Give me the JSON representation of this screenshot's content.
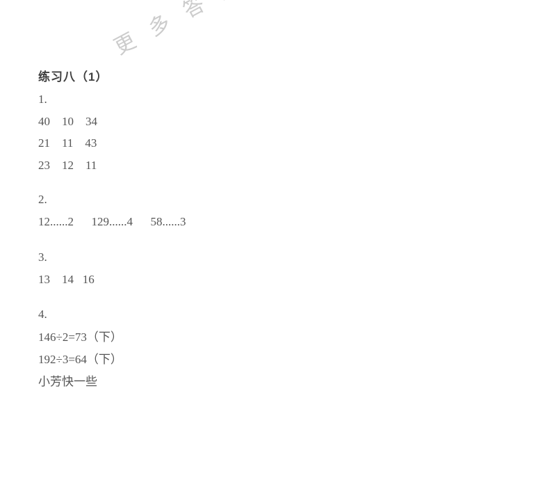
{
  "watermark": "更多答案请下载作业精灵",
  "title": "练习八（1）",
  "q1": {
    "label": "1.",
    "r1c1": "40",
    "r1c2": "10",
    "r1c3": "34",
    "r2c1": "21",
    "r2c2": "11",
    "r2c3": "43",
    "r3c1": "23",
    "r3c2": "12",
    "r3c3": "11"
  },
  "q2": {
    "label": "2.",
    "a": "12......2",
    "b": "129......4",
    "c": "58......3"
  },
  "q3": {
    "label": "3.",
    "a": "13",
    "b": "14",
    "c": "16"
  },
  "q4": {
    "label": "4.",
    "line1": "146÷2=73（下）",
    "line2": "192÷3=64（下）",
    "line3": "小芳快一些"
  },
  "colors": {
    "text": "#555555",
    "title": "#404040",
    "background": "#ffffff",
    "watermark": "#cccccc"
  }
}
